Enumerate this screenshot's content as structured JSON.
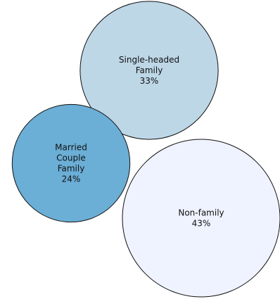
{
  "chart_data": {
    "type": "bubble",
    "title": "",
    "unit": "%",
    "series": [
      {
        "name": "Single-headed Family",
        "label_lines": [
          "Single-headed",
          "Family",
          "33%"
        ],
        "value": 33,
        "color": "#bdd7e7"
      },
      {
        "name": "Married Couple Family",
        "label_lines": [
          "Married",
          "Couple",
          "Family",
          "24%"
        ],
        "value": 24,
        "color": "#6baed6"
      },
      {
        "name": "Non-family",
        "label_lines": [
          "Non-family",
          "43%"
        ],
        "value": 43,
        "color": "#eff3ff"
      }
    ]
  }
}
